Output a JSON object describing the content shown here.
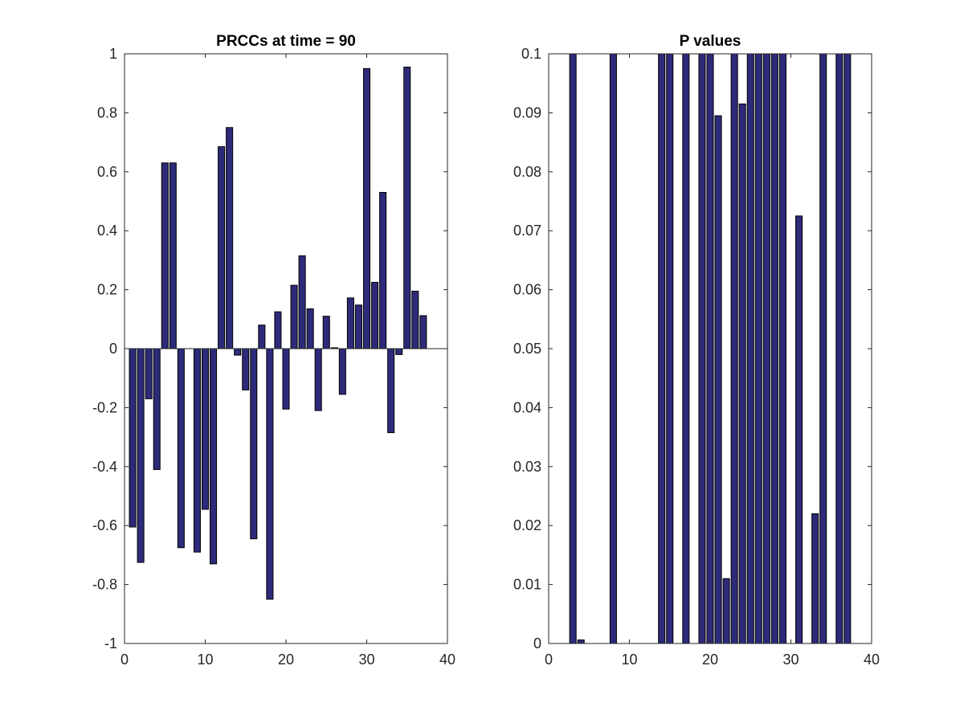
{
  "colors": {
    "bar_fill": "#2e2a7a",
    "bar_edge": "#000000",
    "axis": "#262626"
  },
  "chart_data": [
    {
      "type": "bar",
      "title": "PRCCs at time = 90",
      "xlabel": "",
      "ylabel": "",
      "xlim": [
        0,
        40
      ],
      "ylim": [
        -1,
        1
      ],
      "grid": false,
      "legend": "none",
      "xticks": [
        0,
        10,
        20,
        30,
        40
      ],
      "yticks": [
        -1,
        -0.8,
        -0.6,
        -0.4,
        -0.2,
        0,
        0.2,
        0.4,
        0.6,
        0.8,
        1
      ],
      "ytick_labels": [
        "-1",
        "-0.8",
        "-0.6",
        "-0.4",
        "-0.2",
        "0",
        "0.2",
        "0.4",
        "0.6",
        "0.8",
        "1"
      ],
      "baseline": 0,
      "x": [
        1,
        2,
        3,
        4,
        5,
        6,
        7,
        8,
        9,
        10,
        11,
        12,
        13,
        14,
        15,
        16,
        17,
        18,
        19,
        20,
        21,
        22,
        23,
        24,
        25,
        26,
        27,
        28,
        29,
        30,
        31,
        32,
        33,
        34,
        35,
        36,
        37
      ],
      "values": [
        -0.605,
        -0.725,
        -0.17,
        -0.41,
        0.63,
        0.63,
        -0.675,
        0,
        -0.69,
        -0.545,
        -0.73,
        0.685,
        0.75,
        -0.022,
        -0.14,
        -0.645,
        0.08,
        -0.85,
        0.125,
        -0.205,
        0.215,
        0.315,
        0.135,
        -0.21,
        0.11,
        0.003,
        -0.155,
        0.172,
        0.148,
        0.95,
        0.225,
        0.53,
        -0.285,
        -0.02,
        0.955,
        0.195,
        0.112
      ]
    },
    {
      "type": "bar",
      "title": "P values",
      "xlabel": "",
      "ylabel": "",
      "xlim": [
        0,
        40
      ],
      "ylim": [
        0,
        0.1
      ],
      "grid": false,
      "legend": "none",
      "xticks": [
        0,
        10,
        20,
        30,
        40
      ],
      "yticks": [
        0,
        0.01,
        0.02,
        0.03,
        0.04,
        0.05,
        0.06,
        0.07,
        0.08,
        0.09,
        0.1
      ],
      "ytick_labels": [
        "0",
        "0.01",
        "0.02",
        "0.03",
        "0.04",
        "0.05",
        "0.06",
        "0.07",
        "0.08",
        "0.09",
        "0.1"
      ],
      "baseline": 0,
      "x": [
        1,
        2,
        3,
        4,
        5,
        6,
        7,
        8,
        9,
        10,
        11,
        12,
        13,
        14,
        15,
        16,
        17,
        18,
        19,
        20,
        21,
        22,
        23,
        24,
        25,
        26,
        27,
        28,
        29,
        30,
        31,
        32,
        33,
        34,
        35,
        36,
        37
      ],
      "values": [
        0,
        0,
        0.1,
        0.0006,
        0,
        0,
        0,
        0.1,
        0,
        0,
        0,
        0,
        0,
        0.1,
        0.1,
        0,
        0.1,
        0,
        0.1,
        0.1,
        0.0895,
        0.011,
        0.1,
        0.0915,
        0.1,
        0.1,
        0.1,
        0.1,
        0.1,
        0,
        0.0725,
        0,
        0.022,
        0.1,
        0,
        0.1,
        0.1
      ]
    }
  ]
}
